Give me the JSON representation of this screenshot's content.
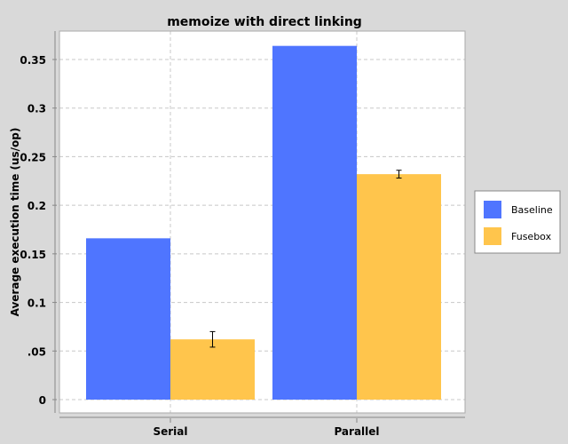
{
  "chart_data": {
    "type": "bar",
    "title": "memoize with direct linking",
    "xlabel": "",
    "ylabel": "Average execution time (us/op)",
    "categories": [
      "Serial",
      "Parallel"
    ],
    "series": [
      {
        "name": "Baseline",
        "color": "#4f75ff",
        "values": [
          0.166,
          0.364
        ],
        "errors": [
          null,
          null
        ]
      },
      {
        "name": "Fusebox",
        "color": "#ffc54c",
        "values": [
          0.062,
          0.232
        ],
        "errors": [
          0.008,
          0.004
        ]
      }
    ],
    "ylim": [
      0,
      0.38
    ],
    "yticks": [
      0,
      0.05,
      0.1,
      0.15,
      0.2,
      0.25,
      0.3,
      0.35
    ],
    "ytick_labels": [
      "0",
      ".05",
      "0.1",
      "0.15",
      "0.2",
      "0.25",
      "0.3",
      "0.35"
    ],
    "grid": true,
    "legend_position": "right"
  }
}
